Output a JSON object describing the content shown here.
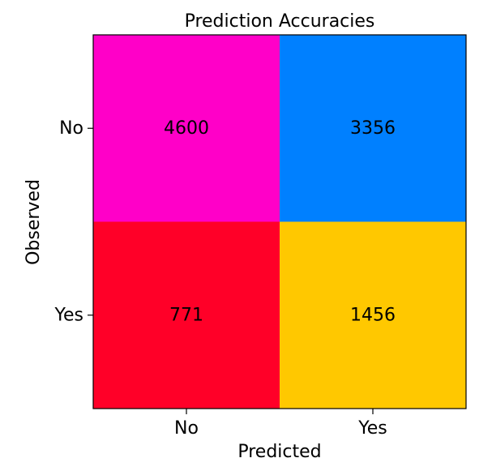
{
  "chart_data": {
    "type": "heatmap",
    "title": "Prediction Accuracies",
    "xlabel": "Predicted",
    "ylabel": "Observed",
    "x_categories": [
      "No",
      "Yes"
    ],
    "y_categories": [
      "No",
      "Yes"
    ],
    "values": [
      [
        4600,
        3356
      ],
      [
        771,
        1456
      ]
    ],
    "cell_colors": [
      [
        "#ff00c8",
        "#0080ff"
      ],
      [
        "#ff0028",
        "#ffc800"
      ]
    ],
    "grid": false,
    "legend": "none"
  }
}
